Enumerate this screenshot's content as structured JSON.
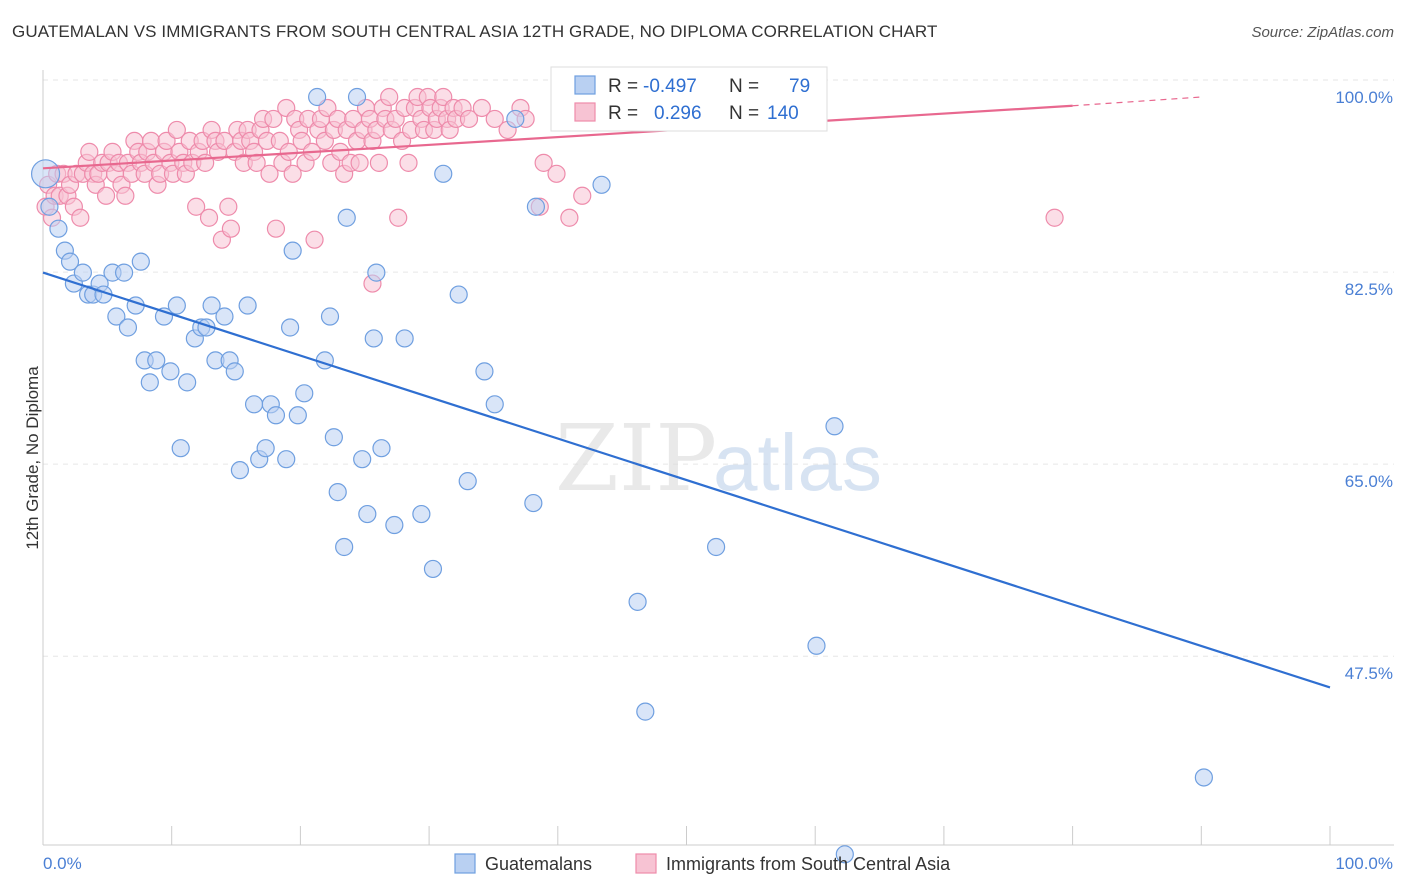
{
  "title": "GUATEMALAN VS IMMIGRANTS FROM SOUTH CENTRAL ASIA 12TH GRADE, NO DIPLOMA CORRELATION CHART",
  "source": "Source: ZipAtlas.com",
  "watermark": {
    "zip": "ZIP",
    "atlas": "atlas"
  },
  "chart_data": {
    "type": "scatter",
    "xlabel": "",
    "ylabel": "12th Grade, No Diploma",
    "xlim": [
      0,
      100
    ],
    "ylim": [
      31,
      102
    ],
    "x_tick_labels": [
      {
        "value": 0,
        "label": "0.0%"
      },
      {
        "value": 100,
        "label": "100.0%"
      }
    ],
    "y_ticks": [
      {
        "value": 100,
        "label": "100.0%"
      },
      {
        "value": 82.5,
        "label": "82.5%"
      },
      {
        "value": 65,
        "label": "65.0%"
      },
      {
        "value": 47.5,
        "label": "47.5%"
      }
    ],
    "grid": true,
    "legend_position": "top-center",
    "series": [
      {
        "name": "Guatemalans",
        "color": "#6f9fe0",
        "fill": "#b9d0f2",
        "line_color": "#2f6fd1",
        "R": "-0.497",
        "N": "79",
        "trend": {
          "x": [
            0,
            100
          ],
          "y": [
            84,
            46.2
          ]
        },
        "points": [
          [
            0.2,
            93
          ],
          [
            0.5,
            90
          ],
          [
            1.2,
            88
          ],
          [
            1.7,
            86
          ],
          [
            2.1,
            85
          ],
          [
            2.4,
            83
          ],
          [
            3.1,
            84
          ],
          [
            3.5,
            82
          ],
          [
            3.9,
            82
          ],
          [
            4.4,
            83
          ],
          [
            4.7,
            82
          ],
          [
            5.4,
            84
          ],
          [
            5.7,
            80
          ],
          [
            6.3,
            84
          ],
          [
            6.6,
            79
          ],
          [
            7.2,
            81
          ],
          [
            7.6,
            85
          ],
          [
            7.9,
            76
          ],
          [
            8.3,
            74
          ],
          [
            8.8,
            76
          ],
          [
            9.4,
            80
          ],
          [
            9.9,
            75
          ],
          [
            10.4,
            81
          ],
          [
            10.7,
            68
          ],
          [
            11.2,
            74
          ],
          [
            11.8,
            78
          ],
          [
            12.3,
            79
          ],
          [
            12.7,
            79
          ],
          [
            13.1,
            81
          ],
          [
            13.4,
            76
          ],
          [
            14.1,
            80
          ],
          [
            14.5,
            76
          ],
          [
            14.9,
            75
          ],
          [
            15.3,
            66
          ],
          [
            15.9,
            81
          ],
          [
            16.4,
            72
          ],
          [
            16.8,
            67
          ],
          [
            17.3,
            68
          ],
          [
            17.7,
            72
          ],
          [
            18.1,
            71
          ],
          [
            18.9,
            67
          ],
          [
            19.2,
            79
          ],
          [
            19.4,
            86
          ],
          [
            19.8,
            71
          ],
          [
            20.3,
            73
          ],
          [
            21.3,
            100
          ],
          [
            21.9,
            76
          ],
          [
            22.3,
            80
          ],
          [
            22.6,
            69
          ],
          [
            22.9,
            64
          ],
          [
            23.4,
            59
          ],
          [
            23.6,
            89
          ],
          [
            24.4,
            100
          ],
          [
            24.8,
            67
          ],
          [
            25.2,
            62
          ],
          [
            25.7,
            78
          ],
          [
            25.9,
            84
          ],
          [
            26.3,
            68
          ],
          [
            27.3,
            61
          ],
          [
            28.1,
            78
          ],
          [
            29.4,
            62
          ],
          [
            30.3,
            57
          ],
          [
            31.1,
            93
          ],
          [
            32.3,
            82
          ],
          [
            33.0,
            65
          ],
          [
            34.3,
            75
          ],
          [
            35.1,
            72
          ],
          [
            36.7,
            98
          ],
          [
            38.1,
            63
          ],
          [
            38.3,
            90
          ],
          [
            43.4,
            92
          ],
          [
            46.2,
            54
          ],
          [
            46.8,
            44
          ],
          [
            52.3,
            59
          ],
          [
            59.0,
            100
          ],
          [
            60.1,
            50
          ],
          [
            61.5,
            70
          ],
          [
            62.3,
            31
          ],
          [
            90.2,
            38
          ]
        ]
      },
      {
        "name": "Immigrants from South Central Asia",
        "color": "#ee8bab",
        "fill": "#f7c3d3",
        "line_color": "#e8688f",
        "R": "0.296",
        "N": "140",
        "trend": {
          "x": [
            0,
            80,
            90
          ],
          "y": [
            93.5,
            99.2,
            100
          ]
        },
        "points": [
          [
            0.2,
            90
          ],
          [
            0.4,
            92
          ],
          [
            0.7,
            89
          ],
          [
            0.9,
            91
          ],
          [
            1.1,
            93
          ],
          [
            1.3,
            91
          ],
          [
            1.6,
            93
          ],
          [
            1.9,
            91
          ],
          [
            2.1,
            92
          ],
          [
            2.4,
            90
          ],
          [
            2.6,
            93
          ],
          [
            2.9,
            89
          ],
          [
            3.1,
            93
          ],
          [
            3.4,
            94
          ],
          [
            3.6,
            95
          ],
          [
            3.9,
            93
          ],
          [
            4.1,
            92
          ],
          [
            4.3,
            93
          ],
          [
            4.6,
            94
          ],
          [
            4.9,
            91
          ],
          [
            5.1,
            94
          ],
          [
            5.4,
            95
          ],
          [
            5.6,
            93
          ],
          [
            5.9,
            94
          ],
          [
            6.1,
            92
          ],
          [
            6.4,
            91
          ],
          [
            6.6,
            94
          ],
          [
            6.9,
            93
          ],
          [
            7.1,
            96
          ],
          [
            7.4,
            95
          ],
          [
            7.6,
            94
          ],
          [
            7.9,
            93
          ],
          [
            8.1,
            95
          ],
          [
            8.4,
            96
          ],
          [
            8.6,
            94
          ],
          [
            8.9,
            92
          ],
          [
            9.1,
            93
          ],
          [
            9.4,
            95
          ],
          [
            9.6,
            96
          ],
          [
            9.9,
            94
          ],
          [
            10.1,
            93
          ],
          [
            10.4,
            97
          ],
          [
            10.6,
            95
          ],
          [
            10.9,
            94
          ],
          [
            11.1,
            93
          ],
          [
            11.4,
            96
          ],
          [
            11.6,
            94
          ],
          [
            11.9,
            90
          ],
          [
            12.1,
            95
          ],
          [
            12.4,
            96
          ],
          [
            12.6,
            94
          ],
          [
            12.9,
            89
          ],
          [
            13.1,
            97
          ],
          [
            13.4,
            96
          ],
          [
            13.6,
            95
          ],
          [
            13.9,
            87
          ],
          [
            14.1,
            96
          ],
          [
            14.4,
            90
          ],
          [
            14.6,
            88
          ],
          [
            14.9,
            95
          ],
          [
            15.1,
            97
          ],
          [
            15.4,
            96
          ],
          [
            15.6,
            94
          ],
          [
            15.9,
            97
          ],
          [
            16.1,
            96
          ],
          [
            16.4,
            95
          ],
          [
            16.6,
            94
          ],
          [
            16.9,
            97
          ],
          [
            17.1,
            98
          ],
          [
            17.4,
            96
          ],
          [
            17.6,
            93
          ],
          [
            17.9,
            98
          ],
          [
            18.1,
            88
          ],
          [
            18.4,
            96
          ],
          [
            18.6,
            94
          ],
          [
            18.9,
            99
          ],
          [
            19.1,
            95
          ],
          [
            19.4,
            93
          ],
          [
            19.6,
            98
          ],
          [
            19.9,
            97
          ],
          [
            20.1,
            96
          ],
          [
            20.4,
            94
          ],
          [
            20.6,
            98
          ],
          [
            20.9,
            95
          ],
          [
            21.1,
            87
          ],
          [
            21.4,
            97
          ],
          [
            21.6,
            98
          ],
          [
            21.9,
            96
          ],
          [
            22.1,
            99
          ],
          [
            22.4,
            94
          ],
          [
            22.6,
            97
          ],
          [
            22.9,
            98
          ],
          [
            23.1,
            95
          ],
          [
            23.4,
            93
          ],
          [
            23.6,
            97
          ],
          [
            23.9,
            94
          ],
          [
            24.1,
            98
          ],
          [
            24.4,
            96
          ],
          [
            24.6,
            94
          ],
          [
            24.9,
            97
          ],
          [
            25.1,
            99
          ],
          [
            25.4,
            98
          ],
          [
            25.6,
            96
          ],
          [
            25.9,
            97
          ],
          [
            26.1,
            94
          ],
          [
            26.4,
            99
          ],
          [
            26.6,
            98
          ],
          [
            26.9,
            100
          ],
          [
            27.1,
            97
          ],
          [
            27.4,
            98
          ],
          [
            27.6,
            89
          ],
          [
            27.9,
            96
          ],
          [
            28.1,
            99
          ],
          [
            28.4,
            94
          ],
          [
            28.6,
            97
          ],
          [
            28.9,
            99
          ],
          [
            29.1,
            100
          ],
          [
            29.4,
            98
          ],
          [
            29.6,
            97
          ],
          [
            29.9,
            100
          ],
          [
            30.1,
            99
          ],
          [
            30.4,
            97
          ],
          [
            30.6,
            98
          ],
          [
            30.9,
            99
          ],
          [
            31.1,
            100
          ],
          [
            31.4,
            98
          ],
          [
            31.6,
            97
          ],
          [
            31.9,
            99
          ],
          [
            32.1,
            98
          ],
          [
            32.6,
            99
          ],
          [
            33.1,
            98
          ],
          [
            34.1,
            99
          ],
          [
            35.1,
            98
          ],
          [
            36.1,
            97
          ],
          [
            37.1,
            99
          ],
          [
            37.5,
            98
          ],
          [
            38.6,
            90
          ],
          [
            38.9,
            94
          ],
          [
            39.9,
            93
          ],
          [
            40.9,
            89
          ],
          [
            41.9,
            91
          ],
          [
            25.6,
            83
          ],
          [
            78.6,
            89
          ]
        ]
      }
    ]
  }
}
